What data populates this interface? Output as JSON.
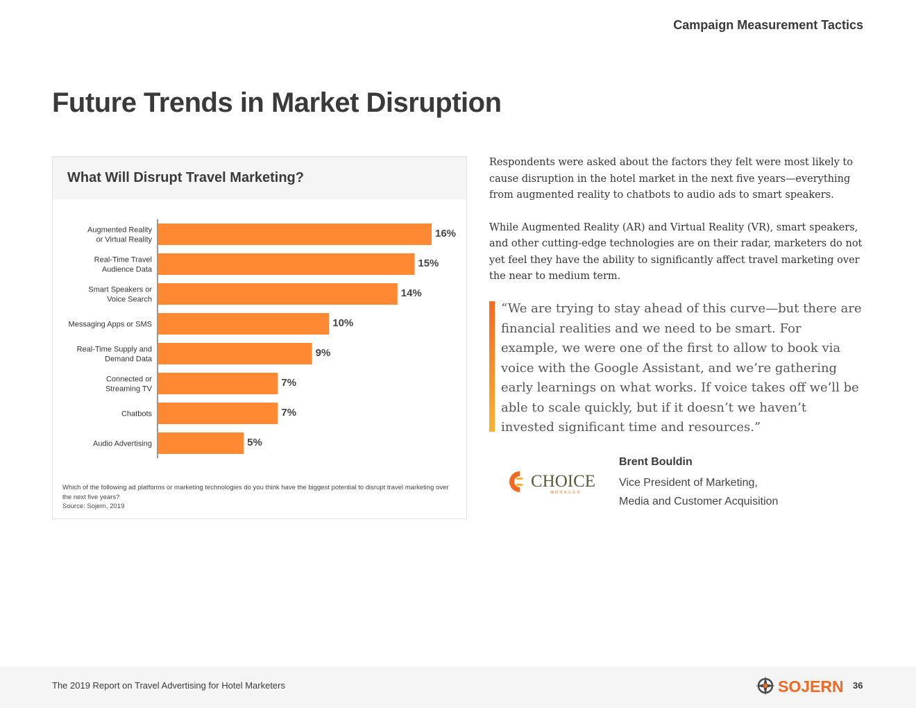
{
  "header": {
    "section_label": "Campaign Measurement Tactics"
  },
  "page_title": "Future Trends in Market Disruption",
  "chart_card": {
    "title": "What Will Disrupt Travel Marketing?",
    "note": "Which of the following ad platforms or marketing technologies do you think have the biggest potential to disrupt travel marketing over the next five years?",
    "source": "Source: Sojern, 2019"
  },
  "chart_data": {
    "type": "bar",
    "orientation": "horizontal",
    "title": "What Will Disrupt Travel Marketing?",
    "categories": [
      [
        "Augmented Reality",
        "or Virtual Reality"
      ],
      [
        "Real-Time Travel",
        "Audience Data"
      ],
      [
        "Smart Speakers or",
        "Voice Search"
      ],
      [
        "Messaging Apps or SMS"
      ],
      [
        "Real-Time Supply and",
        "Demand Data"
      ],
      [
        "Connected or",
        "Streaming TV"
      ],
      [
        "Chatbots"
      ],
      [
        "Audio Advertising"
      ]
    ],
    "values": [
      16,
      15,
      14,
      10,
      9,
      7,
      7,
      5
    ],
    "value_labels": [
      "16%",
      "15%",
      "14%",
      "10%",
      "9%",
      "7%",
      "7%",
      "5%"
    ],
    "xlim": [
      0,
      16
    ],
    "bar_color": "#ff8833",
    "grid": false
  },
  "intro": {
    "paragraph1": "Respondents were asked about the factors they felt were most likely to cause disruption in the hotel market in the next five years—everything from augmented reality to chatbots to audio ads to smart speakers.",
    "paragraph2": "While Augmented Reality (AR) and Virtual Reality (VR), smart speakers, and other cutting-edge technologies are on their radar, marketers do not yet feel they have the ability to significantly affect travel marketing over the near to medium term."
  },
  "quote": {
    "text": "“We are trying to stay ahead of this curve—but there are financial realities and we need to be smart. For example, we were one of the first to allow to book via voice with the Google Assistant, and we’re gathering early learnings on what works. If voice takes off we’ll be able to scale quickly, but if it doesn’t we haven’t invested significant time and resources.”",
    "name": "Brent Bouldin",
    "role_line1": "Vice President of Marketing,",
    "role_line2": "Media and Customer Acquisition",
    "logo_word": "CHOICE",
    "logo_sub": "HOTELS®"
  },
  "footer": {
    "report_title": "The 2019 Report on Travel Advertising for Hotel Marketers",
    "brand": "SOJERN",
    "page_number": "36"
  },
  "colors": {
    "accent": "#ff8833",
    "brand_orange": "#f26a22",
    "text_dark": "#3a3a3a",
    "logo_olive": "#5a5a3c"
  }
}
